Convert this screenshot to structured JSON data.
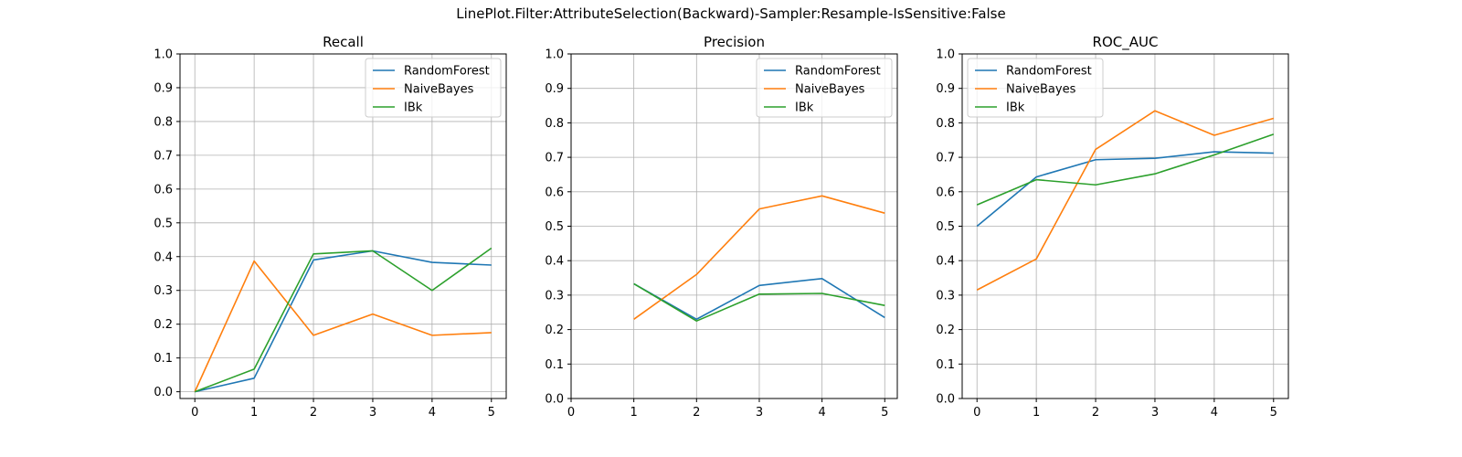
{
  "figure": {
    "suptitle": "LinePlot.Filter:AttributeSelection(Backward)-Sampler:Resample-IsSensitive:False"
  },
  "colors": {
    "RandomForest": "#1f77b4",
    "NaiveBayes": "#ff7f0e",
    "IBk": "#2ca02c",
    "grid": "#b0b0b0"
  },
  "chart_data": [
    {
      "type": "line",
      "title": "Recall",
      "xlabel": "",
      "ylabel": "",
      "xlim": [
        -0.25,
        5.25
      ],
      "ylim": [
        -0.02,
        1.0
      ],
      "xticks": [
        0,
        1,
        2,
        3,
        4,
        5
      ],
      "yticks": [
        0.0,
        0.1,
        0.2,
        0.3,
        0.4,
        0.5,
        0.6,
        0.7,
        0.8,
        0.9,
        1.0
      ],
      "grid": true,
      "legend": "upper right",
      "series": [
        {
          "name": "RandomForest",
          "x": [
            0,
            1,
            2,
            3,
            4,
            5
          ],
          "values": [
            0.0,
            0.04,
            0.39,
            0.417,
            0.383,
            0.375
          ]
        },
        {
          "name": "NaiveBayes",
          "x": [
            0,
            1,
            2,
            3,
            4,
            5
          ],
          "values": [
            0.0,
            0.387,
            0.167,
            0.23,
            0.167,
            0.175
          ]
        },
        {
          "name": "IBk",
          "x": [
            0,
            1,
            2,
            3,
            4,
            5
          ],
          "values": [
            0.0,
            0.067,
            0.408,
            0.417,
            0.3,
            0.425
          ]
        }
      ]
    },
    {
      "type": "line",
      "title": "Precision",
      "xlabel": "",
      "ylabel": "",
      "xlim": [
        0,
        5.2
      ],
      "ylim": [
        0.0,
        1.0
      ],
      "xticks": [
        0,
        1,
        2,
        3,
        4,
        5
      ],
      "yticks": [
        0.0,
        0.1,
        0.2,
        0.3,
        0.4,
        0.5,
        0.6,
        0.7,
        0.8,
        0.9,
        1.0
      ],
      "grid": true,
      "legend": "upper right",
      "series": [
        {
          "name": "RandomForest",
          "x": [
            1,
            2,
            3,
            4,
            5
          ],
          "values": [
            0.333,
            0.23,
            0.328,
            0.348,
            0.235
          ]
        },
        {
          "name": "NaiveBayes",
          "x": [
            1,
            2,
            3,
            4,
            5
          ],
          "values": [
            0.23,
            0.36,
            0.55,
            0.588,
            0.538
          ]
        },
        {
          "name": "IBk",
          "x": [
            1,
            2,
            3,
            4,
            5
          ],
          "values": [
            0.333,
            0.225,
            0.303,
            0.305,
            0.27
          ]
        }
      ]
    },
    {
      "type": "line",
      "title": "ROC_AUC",
      "xlabel": "",
      "ylabel": "",
      "xlim": [
        -0.25,
        5.25
      ],
      "ylim": [
        0.0,
        1.0
      ],
      "xticks": [
        0,
        1,
        2,
        3,
        4,
        5
      ],
      "yticks": [
        0.0,
        0.1,
        0.2,
        0.3,
        0.4,
        0.5,
        0.6,
        0.7,
        0.8,
        0.9,
        1.0
      ],
      "grid": true,
      "legend": "upper left",
      "series": [
        {
          "name": "RandomForest",
          "x": [
            0,
            1,
            2,
            3,
            4,
            5
          ],
          "values": [
            0.5,
            0.643,
            0.693,
            0.697,
            0.716,
            0.712
          ]
        },
        {
          "name": "NaiveBayes",
          "x": [
            0,
            1,
            2,
            3,
            4,
            5
          ],
          "values": [
            0.315,
            0.405,
            0.723,
            0.835,
            0.764,
            0.813
          ]
        },
        {
          "name": "IBk",
          "x": [
            0,
            1,
            2,
            3,
            4,
            5
          ],
          "values": [
            0.562,
            0.635,
            0.62,
            0.652,
            0.707,
            0.767
          ]
        }
      ]
    }
  ]
}
